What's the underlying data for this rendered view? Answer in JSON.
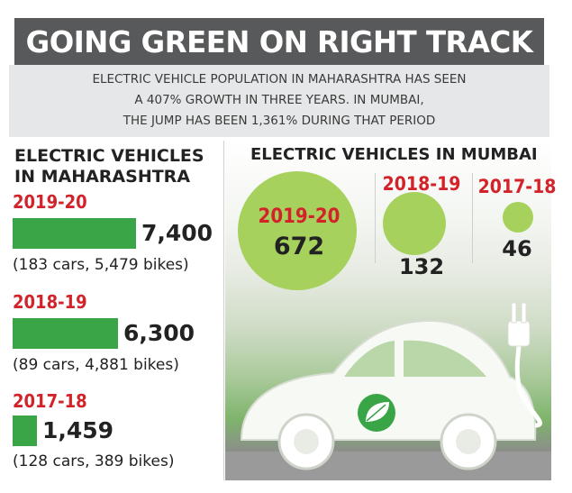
{
  "title": "GOING GREEN ON RIGHT TRACK",
  "subtitle": [
    "ELECTRIC VEHICLE POPULATION IN MAHARASHTRA HAS SEEN",
    "A 407% GROWTH IN THREE YEARS. IN MUMBAI,",
    "THE JUMP HAS BEEN 1,361% DURING THAT PERIOD"
  ],
  "colors": {
    "bar": "#3aa547",
    "circle": "#a6d15d",
    "year": "#d2232a",
    "header": "#58595b"
  },
  "chart_data": [
    {
      "type": "bar",
      "title": "ELECTRIC VEHICLES IN MAHARASHTRA",
      "categories": [
        "2019-20",
        "2018-19",
        "2017-18"
      ],
      "values": [
        7400,
        6300,
        1459
      ],
      "value_labels": [
        "7,400",
        "6,300",
        "1,459"
      ],
      "breakdowns": [
        "(183 cars, 5,479 bikes)",
        "(89 cars, 4,881 bikes)",
        "(128 cars, 389 bikes)"
      ],
      "orientation": "horizontal"
    },
    {
      "type": "bubble",
      "title": "ELECTRIC VEHICLES IN MUMBAI",
      "categories": [
        "2019-20",
        "2018-19",
        "2017-18"
      ],
      "values": [
        672,
        132,
        46
      ],
      "value_labels": [
        "672",
        "132",
        "46"
      ]
    }
  ]
}
